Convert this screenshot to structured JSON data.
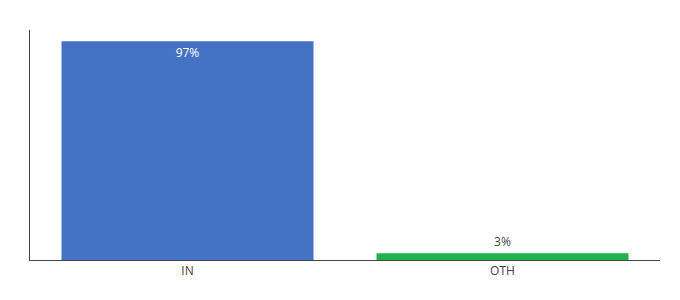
{
  "chart_data": {
    "type": "bar",
    "categories": [
      "IN",
      "OTH"
    ],
    "values": [
      97,
      3
    ],
    "value_labels": [
      "97%",
      "3%"
    ],
    "colors": [
      "#4472c4",
      "#22b14c"
    ],
    "ylim": [
      0,
      102
    ],
    "data_labels": true,
    "tick_labels": "x",
    "grid": false
  }
}
